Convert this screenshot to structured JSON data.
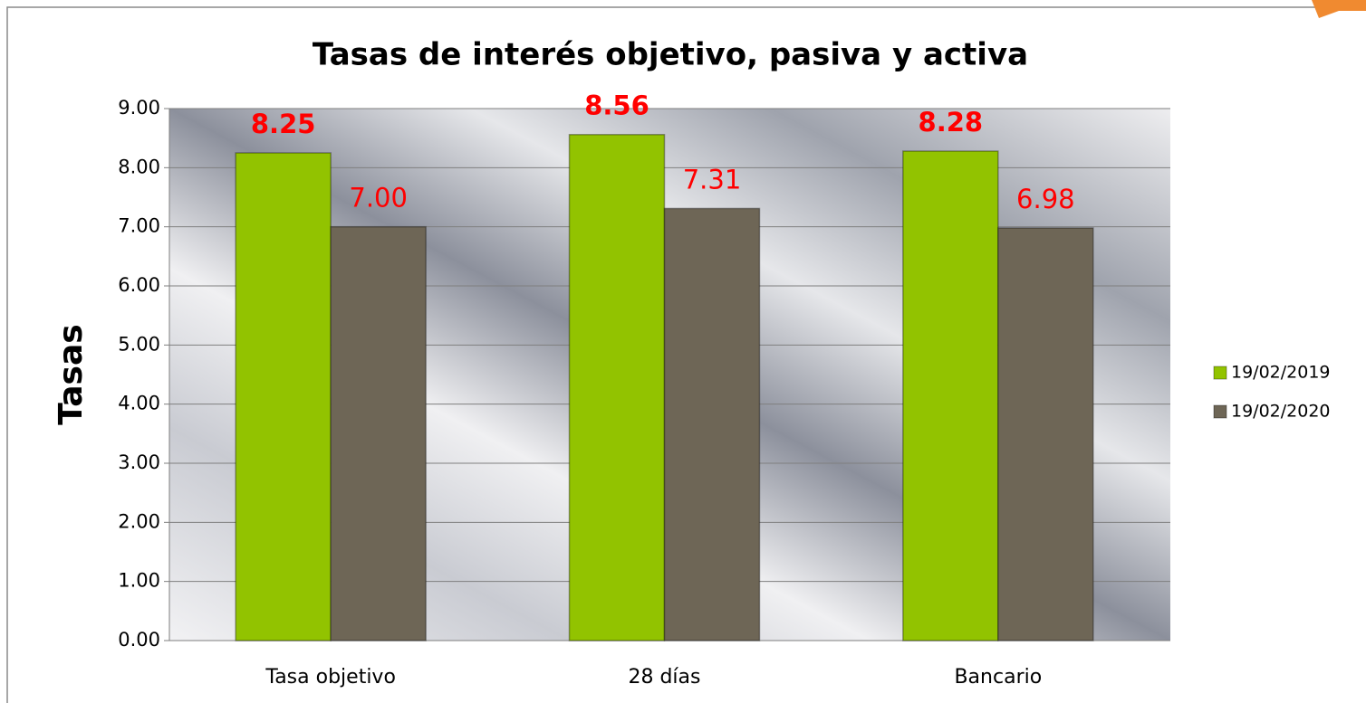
{
  "chart_data": {
    "type": "bar",
    "title": "Tasas de interés objetivo, pasiva y activa",
    "y_label": "Tasas",
    "categories": [
      "Tasa objetivo",
      "28 días",
      "Bancario"
    ],
    "series": [
      {
        "name": "19/02/2019",
        "color": "#92c300",
        "values": [
          8.25,
          8.56,
          8.28
        ],
        "value_labels": [
          "8.25",
          "8.56",
          "8.28"
        ]
      },
      {
        "name": "19/02/2020",
        "color": "#6e6656",
        "values": [
          7.0,
          7.31,
          6.98
        ],
        "value_labels": [
          "7.00",
          "7.31",
          "6.98"
        ]
      }
    ],
    "ylim": [
      0,
      9
    ],
    "yticks": [
      {
        "value": 0,
        "label": "0.00"
      },
      {
        "value": 1,
        "label": "1.00"
      },
      {
        "value": 2,
        "label": "2.00"
      },
      {
        "value": 3,
        "label": "3.00"
      },
      {
        "value": 4,
        "label": "4.00"
      },
      {
        "value": 5,
        "label": "5.00"
      },
      {
        "value": 6,
        "label": "6.00"
      },
      {
        "value": 7,
        "label": "7.00"
      },
      {
        "value": 8,
        "label": "8.00"
      },
      {
        "value": 9,
        "label": "9.00"
      }
    ],
    "grid": true,
    "legend": "right"
  }
}
